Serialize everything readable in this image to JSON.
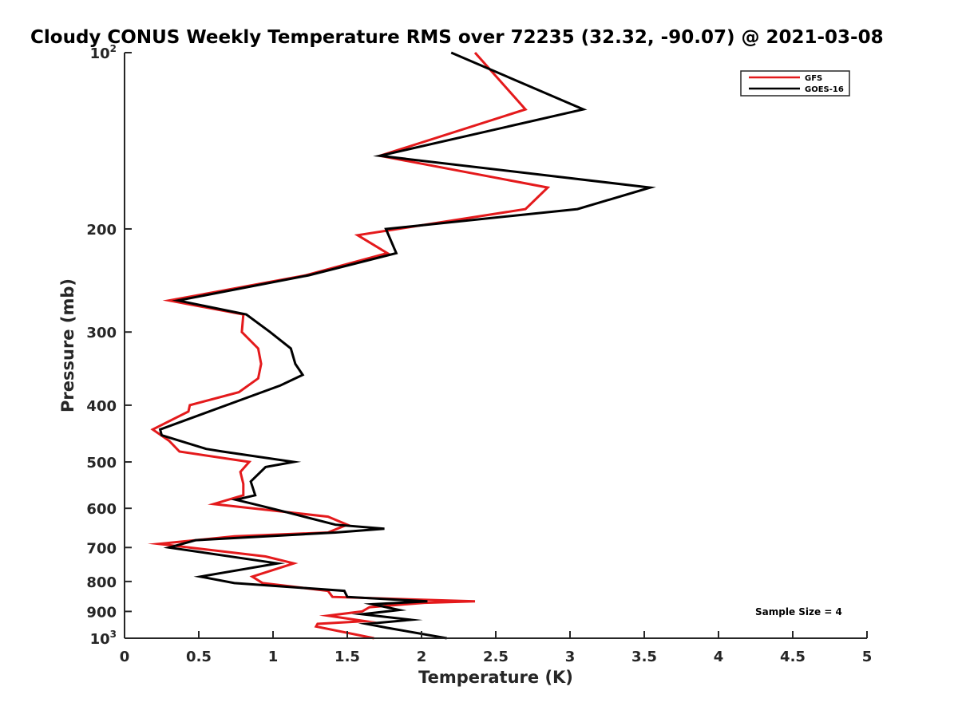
{
  "chart_data": {
    "type": "line",
    "title": "Cloudy CONUS Weekly Temperature RMS over 72235 (32.32, -90.07) @ 2021-03-08",
    "xlabel": "Temperature (K)",
    "ylabel": "Pressure (mb)",
    "xlim": [
      0,
      5
    ],
    "ylim": [
      100,
      1000
    ],
    "y_scale": "log",
    "y_reversed": true,
    "x_ticks": [
      "0",
      "0.5",
      "1",
      "1.5",
      "2",
      "2.5",
      "3",
      "3.5",
      "4",
      "4.5",
      "5"
    ],
    "y_ticks": [
      {
        "value": 100,
        "base": "10",
        "exp": "2"
      },
      {
        "value": 200,
        "label": "200"
      },
      {
        "value": 300,
        "label": "300"
      },
      {
        "value": 400,
        "label": "400"
      },
      {
        "value": 500,
        "label": "500"
      },
      {
        "value": 600,
        "label": "600"
      },
      {
        "value": 700,
        "label": "700"
      },
      {
        "value": 800,
        "label": "800"
      },
      {
        "value": 900,
        "label": "900"
      },
      {
        "value": 1000,
        "base": "10",
        "exp": "3"
      }
    ],
    "grid": false,
    "legend_position": "top-right",
    "annotation": "Sample Size = 4",
    "series": [
      {
        "name": "GFS",
        "color": "#e41a1c",
        "points": [
          [
            2.36,
            100
          ],
          [
            2.7,
            125
          ],
          [
            1.72,
            150
          ],
          [
            2.85,
            170
          ],
          [
            2.7,
            185
          ],
          [
            1.57,
            205
          ],
          [
            1.77,
            220
          ],
          [
            1.22,
            240
          ],
          [
            0.3,
            265
          ],
          [
            0.8,
            280
          ],
          [
            0.79,
            300
          ],
          [
            0.9,
            320
          ],
          [
            0.92,
            340
          ],
          [
            0.9,
            360
          ],
          [
            0.77,
            380
          ],
          [
            0.44,
            400
          ],
          [
            0.43,
            410
          ],
          [
            0.19,
            440
          ],
          [
            0.3,
            460
          ],
          [
            0.37,
            480
          ],
          [
            0.84,
            500
          ],
          [
            0.78,
            520
          ],
          [
            0.8,
            545
          ],
          [
            0.8,
            570
          ],
          [
            0.6,
            590
          ],
          [
            1.37,
            620
          ],
          [
            1.5,
            640
          ],
          [
            1.37,
            660
          ],
          [
            0.74,
            670
          ],
          [
            0.23,
            690
          ],
          [
            0.95,
            725
          ],
          [
            1.14,
            745
          ],
          [
            0.86,
            785
          ],
          [
            0.93,
            805
          ],
          [
            1.37,
            830
          ],
          [
            1.4,
            850
          ],
          [
            2.36,
            865
          ],
          [
            2.02,
            870
          ],
          [
            1.65,
            885
          ],
          [
            1.6,
            900
          ],
          [
            1.37,
            915
          ],
          [
            1.62,
            935
          ],
          [
            1.3,
            945
          ],
          [
            1.29,
            955
          ],
          [
            1.68,
            1000
          ]
        ]
      },
      {
        "name": "GOES-16",
        "color": "#000000",
        "points": [
          [
            2.2,
            100
          ],
          [
            3.09,
            125
          ],
          [
            1.72,
            150
          ],
          [
            3.54,
            170
          ],
          [
            3.05,
            185
          ],
          [
            1.76,
            200
          ],
          [
            1.83,
            220
          ],
          [
            1.24,
            240
          ],
          [
            0.36,
            265
          ],
          [
            0.82,
            280
          ],
          [
            0.98,
            300
          ],
          [
            1.12,
            320
          ],
          [
            1.15,
            340
          ],
          [
            1.2,
            355
          ],
          [
            1.05,
            370
          ],
          [
            0.24,
            440
          ],
          [
            0.25,
            450
          ],
          [
            0.55,
            475
          ],
          [
            0.66,
            480
          ],
          [
            1.14,
            500
          ],
          [
            0.95,
            510
          ],
          [
            0.85,
            540
          ],
          [
            0.88,
            570
          ],
          [
            0.75,
            580
          ],
          [
            0.87,
            590
          ],
          [
            1.1,
            610
          ],
          [
            1.42,
            640
          ],
          [
            1.75,
            650
          ],
          [
            1.42,
            660
          ],
          [
            0.48,
            680
          ],
          [
            0.3,
            700
          ],
          [
            1.03,
            745
          ],
          [
            0.51,
            785
          ],
          [
            0.74,
            805
          ],
          [
            1.48,
            830
          ],
          [
            1.5,
            850
          ],
          [
            2.04,
            865
          ],
          [
            1.67,
            875
          ],
          [
            1.85,
            895
          ],
          [
            1.6,
            910
          ],
          [
            1.93,
            930
          ],
          [
            1.63,
            945
          ],
          [
            1.77,
            960
          ],
          [
            2.17,
            1000
          ]
        ]
      }
    ]
  }
}
